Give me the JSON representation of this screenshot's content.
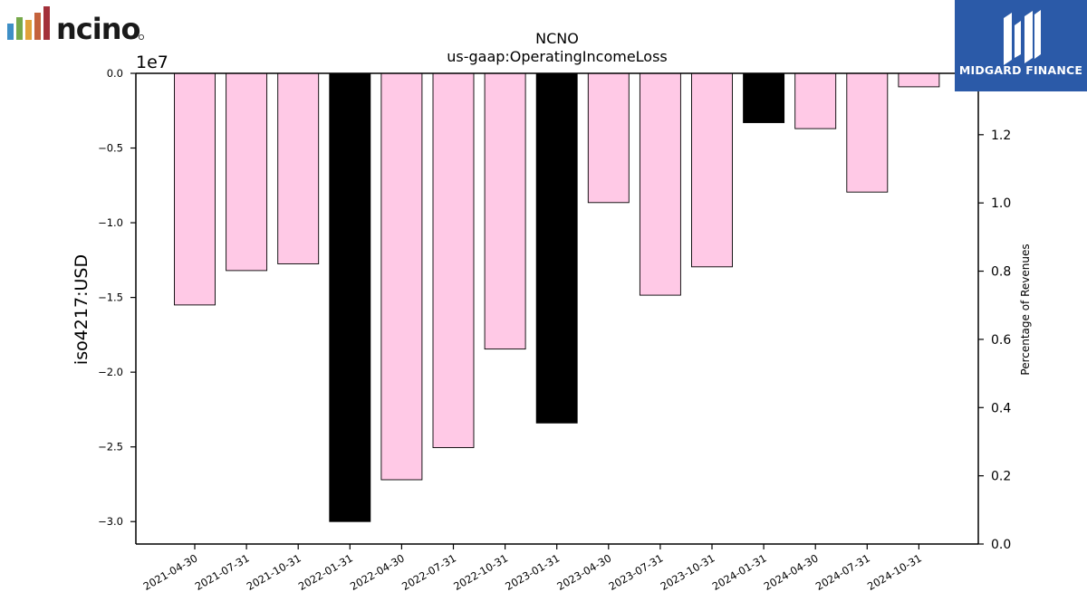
{
  "logos": {
    "left_brand": "ncino",
    "left_brand_colors": [
      "#3e8fc6",
      "#76a94a",
      "#e1a23a",
      "#c4623c",
      "#a3303a"
    ],
    "right_brand": "MIDGARD FINANCE",
    "right_brand_bg": "#2b5aa8"
  },
  "chart_data": {
    "type": "bar",
    "title": "NCNO",
    "subtitle": "us-gaap:OperatingIncomeLoss",
    "ylabel": "iso4217:USD",
    "y2label": "Percentage of Revenues",
    "offset_label": "1e7",
    "ylim": [
      -3.15,
      0
    ],
    "y_unit_multiplier": 10000000,
    "y_ticks": [
      0.0,
      -0.5,
      -1.0,
      -1.5,
      -2.0,
      -2.5,
      -3.0
    ],
    "y_tick_labels": [
      "0.0",
      "−0.5",
      "−1.0",
      "−1.5",
      "−2.0",
      "−2.5",
      "−3.0"
    ],
    "y2lim": [
      0,
      1.38
    ],
    "y2_ticks": [
      0.0,
      0.2,
      0.4,
      0.6,
      0.8,
      1.0,
      1.2
    ],
    "y2_tick_labels": [
      "0.0",
      "0.2",
      "0.4",
      "0.6",
      "0.8",
      "1.0",
      "1.2"
    ],
    "grid": false,
    "legend": "none",
    "categories": [
      "2021-04-30",
      "2021-07-31",
      "2021-10-31",
      "2022-01-31",
      "2022-04-30",
      "2022-07-31",
      "2022-10-31",
      "2023-01-31",
      "2023-04-30",
      "2023-07-31",
      "2023-10-31",
      "2024-01-31",
      "2024-04-30",
      "2024-07-31",
      "2024-10-31"
    ],
    "values": [
      -1.55,
      -1.32,
      -1.275,
      -3.0,
      -2.72,
      -2.505,
      -1.845,
      -2.34,
      -0.865,
      -1.485,
      -1.295,
      -0.33,
      -0.37,
      -0.795,
      -0.09
    ],
    "bar_colors": [
      "#ffc9e6",
      "#ffc9e6",
      "#ffc9e6",
      "#000000",
      "#ffc9e6",
      "#ffc9e6",
      "#ffc9e6",
      "#000000",
      "#ffc9e6",
      "#ffc9e6",
      "#ffc9e6",
      "#000000",
      "#ffc9e6",
      "#ffc9e6",
      "#ffc9e6"
    ]
  }
}
